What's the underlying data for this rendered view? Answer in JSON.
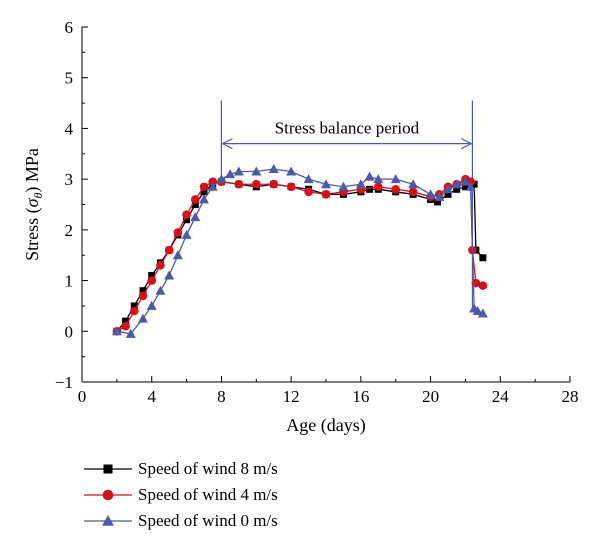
{
  "chart_data": {
    "type": "line",
    "title": "",
    "xlabel": "Age (days)",
    "ylabel": "Stress (σθ) MPa",
    "ylabel_main": "Stress (",
    "ylabel_sigma": "σ",
    "ylabel_sub": "θ",
    "ylabel_tail": ") MPa",
    "xlim": [
      0,
      28
    ],
    "ylim": [
      -1,
      6
    ],
    "xticks": [
      0,
      4,
      8,
      12,
      16,
      20,
      24,
      28
    ],
    "yticks": [
      -1,
      0,
      1,
      2,
      3,
      4,
      5,
      6
    ],
    "grid": false,
    "legend_position": "bottom-left",
    "annotation": {
      "text": "Stress balance period",
      "x_start": 8,
      "x_end": 22.4,
      "y": 3.7,
      "line_color": "#4a5ba8"
    },
    "series": [
      {
        "name": "Speed of wind 8 m/s",
        "color": "#000000",
        "marker": "square",
        "x": [
          2.0,
          2.5,
          3.0,
          3.5,
          4.0,
          4.5,
          5.0,
          5.5,
          6.0,
          6.5,
          7.0,
          7.5,
          8.0,
          9.0,
          10.0,
          11.0,
          12.0,
          13.0,
          14.0,
          15.0,
          16.0,
          16.5,
          17.0,
          18.0,
          19.0,
          20.0,
          20.4,
          21.0,
          21.5,
          22.0,
          22.3,
          22.5,
          22.6,
          23.0
        ],
        "y": [
          0.0,
          0.2,
          0.5,
          0.8,
          1.1,
          1.35,
          1.6,
          1.9,
          2.2,
          2.5,
          2.75,
          2.9,
          2.95,
          2.9,
          2.85,
          2.9,
          2.85,
          2.8,
          2.7,
          2.7,
          2.75,
          2.8,
          2.8,
          2.75,
          2.7,
          2.6,
          2.55,
          2.7,
          2.8,
          2.85,
          2.9,
          2.9,
          1.6,
          1.45
        ]
      },
      {
        "name": "Speed of wind 4 m/s",
        "color": "#d4121b",
        "marker": "circle",
        "x": [
          2.0,
          2.5,
          3.0,
          3.5,
          4.0,
          4.5,
          5.0,
          5.5,
          6.0,
          6.5,
          7.0,
          7.5,
          8.0,
          9.0,
          10.0,
          11.0,
          12.0,
          13.0,
          14.0,
          15.0,
          16.0,
          17.0,
          18.0,
          19.0,
          20.0,
          20.5,
          21.0,
          21.5,
          22.0,
          22.3,
          22.4,
          22.6,
          23.0
        ],
        "y": [
          0.0,
          0.1,
          0.4,
          0.7,
          1.0,
          1.3,
          1.6,
          1.95,
          2.3,
          2.6,
          2.85,
          2.95,
          2.95,
          2.9,
          2.9,
          2.9,
          2.85,
          2.75,
          2.7,
          2.75,
          2.8,
          2.85,
          2.8,
          2.75,
          2.65,
          2.7,
          2.85,
          2.9,
          3.0,
          2.95,
          1.6,
          0.95,
          0.9
        ]
      },
      {
        "name": "Speed of wind 0 m/s",
        "color": "#4a5ba8",
        "marker": "triangle",
        "x": [
          2.0,
          2.8,
          3.5,
          4.0,
          4.5,
          5.0,
          5.5,
          6.0,
          6.5,
          7.0,
          7.5,
          8.0,
          8.5,
          9.0,
          10.0,
          11.0,
          12.0,
          13.0,
          14.0,
          15.0,
          16.0,
          16.5,
          17.0,
          18.0,
          19.0,
          20.0,
          20.5,
          21.0,
          21.5,
          22.0,
          22.3,
          22.5,
          22.7,
          23.0
        ],
        "y": [
          0.0,
          -0.05,
          0.25,
          0.5,
          0.8,
          1.1,
          1.5,
          1.9,
          2.25,
          2.6,
          2.85,
          3.0,
          3.1,
          3.15,
          3.15,
          3.2,
          3.15,
          3.0,
          2.9,
          2.85,
          2.9,
          3.05,
          3.0,
          3.0,
          2.9,
          2.7,
          2.65,
          2.8,
          2.9,
          2.95,
          2.85,
          0.45,
          0.4,
          0.35
        ]
      }
    ]
  }
}
